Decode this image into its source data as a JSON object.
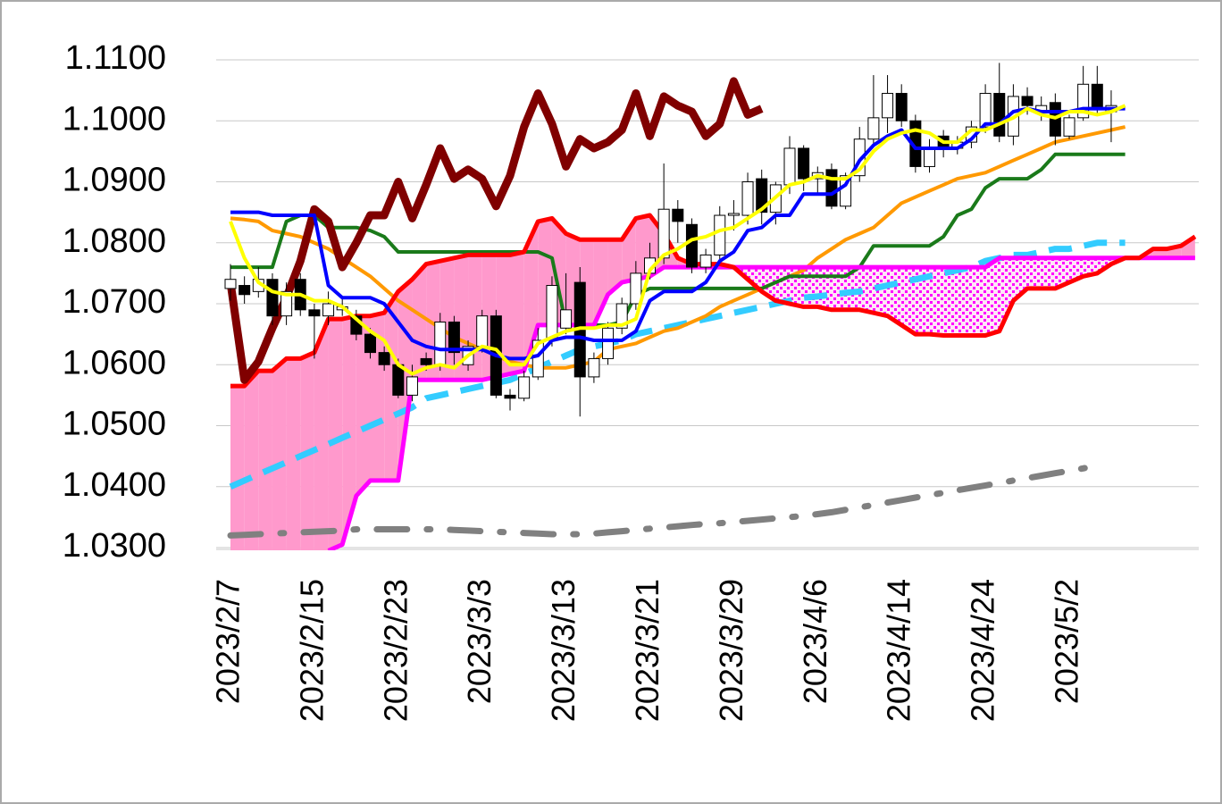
{
  "chart_data": {
    "type": "candlestick",
    "categories": [
      "2023/2/7",
      null,
      null,
      null,
      null,
      null,
      "2023/2/15",
      null,
      null,
      null,
      null,
      null,
      "2023/2/23",
      null,
      null,
      null,
      null,
      null,
      "2023/3/3",
      null,
      null,
      null,
      null,
      null,
      "2023/3/13",
      null,
      null,
      null,
      null,
      null,
      "2023/3/21",
      null,
      null,
      null,
      null,
      null,
      "2023/3/29",
      null,
      null,
      null,
      null,
      null,
      "2023/4/6",
      null,
      null,
      null,
      null,
      null,
      "2023/4/14",
      null,
      null,
      null,
      null,
      null,
      "2023/4/24",
      null,
      null,
      null,
      null,
      null,
      "2023/5/2",
      null,
      null,
      null,
      null,
      null,
      null,
      null,
      null,
      null
    ],
    "ylim": [
      1.03,
      1.11
    ],
    "yticks": [
      {
        "value": 1.03,
        "label": "1.0300"
      },
      {
        "value": 1.04,
        "label": "1.0400"
      },
      {
        "value": 1.05,
        "label": "1.0500"
      },
      {
        "value": 1.06,
        "label": "1.0600"
      },
      {
        "value": 1.07,
        "label": "1.0700"
      },
      {
        "value": 1.08,
        "label": "1.0800"
      },
      {
        "value": 1.09,
        "label": "1.0900"
      },
      {
        "value": 1.1,
        "label": "1.1000"
      },
      {
        "value": 1.11,
        "label": "1.1100"
      }
    ],
    "grid": true,
    "candles": {
      "up_color": "#ffffff",
      "down_color": "#000000",
      "open": [
        1.0725,
        1.073,
        1.072,
        1.074,
        1.068,
        1.074,
        1.069,
        1.068,
        1.069,
        1.068,
        1.065,
        1.062,
        1.06,
        1.055,
        1.061,
        1.06,
        1.067,
        1.06,
        1.063,
        1.068,
        1.055,
        1.0545,
        1.058,
        1.064,
        1.066,
        1.0735,
        1.058,
        1.061,
        1.066,
        1.07,
        1.075,
        1.0775,
        1.0855,
        1.083,
        1.076,
        1.078,
        1.0845,
        1.0845,
        1.0905,
        1.085,
        1.0895,
        1.0955,
        1.0905,
        1.092,
        1.086,
        1.091,
        1.097,
        1.1005,
        1.1045,
        1.1,
        1.0925,
        1.0975,
        1.0955,
        1.0965,
        1.099,
        1.1045,
        1.0975,
        1.104,
        1.1015,
        1.103,
        1.0975,
        1.1005,
        1.106,
        1.1015,
        null,
        null,
        null,
        null,
        null,
        null
      ],
      "high": [
        1.0765,
        1.0745,
        1.076,
        1.075,
        1.0735,
        1.075,
        1.07,
        1.072,
        1.071,
        1.069,
        1.066,
        1.063,
        1.061,
        1.06,
        1.062,
        1.0685,
        1.068,
        1.064,
        1.069,
        1.069,
        1.056,
        1.059,
        1.066,
        1.0745,
        1.075,
        1.076,
        1.062,
        1.067,
        1.071,
        1.077,
        1.08,
        1.093,
        1.087,
        1.084,
        1.079,
        1.086,
        1.087,
        1.0915,
        1.092,
        1.09,
        1.0975,
        1.096,
        1.0925,
        1.093,
        1.0915,
        1.099,
        1.1075,
        1.1075,
        1.106,
        1.101,
        1.097,
        1.0985,
        1.0975,
        1.1,
        1.106,
        1.1095,
        1.106,
        1.1055,
        1.104,
        1.1045,
        1.101,
        1.109,
        1.109,
        1.105,
        null,
        null,
        null,
        null,
        null,
        null
      ],
      "low": [
        1.0705,
        1.07,
        1.071,
        1.0665,
        1.0665,
        1.068,
        1.061,
        1.0665,
        1.068,
        1.064,
        1.061,
        1.059,
        1.0545,
        1.054,
        1.059,
        1.059,
        1.06,
        1.059,
        1.062,
        1.0545,
        1.0525,
        1.054,
        1.0575,
        1.063,
        1.065,
        1.0515,
        1.057,
        1.06,
        1.065,
        1.069,
        1.074,
        1.0765,
        1.08,
        1.075,
        1.075,
        1.077,
        1.082,
        1.083,
        1.083,
        1.083,
        1.088,
        1.0885,
        1.088,
        1.0855,
        1.0855,
        1.09,
        1.096,
        1.098,
        1.099,
        1.0915,
        1.0915,
        1.094,
        1.0945,
        1.0955,
        1.098,
        1.0965,
        1.096,
        1.101,
        1.1,
        1.096,
        1.097,
        1.1,
        1.101,
        1.0965,
        null,
        null,
        null,
        null,
        null,
        null
      ],
      "close": [
        1.074,
        1.0715,
        1.074,
        1.068,
        1.072,
        1.069,
        1.068,
        1.07,
        1.0695,
        1.065,
        1.062,
        1.06,
        1.055,
        1.058,
        1.06,
        1.067,
        1.062,
        1.063,
        1.068,
        1.055,
        1.0545,
        1.058,
        1.064,
        1.073,
        1.069,
        1.058,
        1.061,
        1.066,
        1.07,
        1.075,
        1.0775,
        1.0855,
        1.0835,
        1.076,
        1.078,
        1.0845,
        1.0848,
        1.09,
        1.085,
        1.0895,
        1.0955,
        1.0905,
        1.0915,
        1.086,
        1.091,
        1.097,
        1.1005,
        1.1045,
        1.1,
        1.0925,
        1.0955,
        1.0955,
        1.0965,
        1.099,
        1.1045,
        1.0975,
        1.104,
        1.1025,
        1.1025,
        1.0975,
        1.1005,
        1.106,
        1.102,
        1.1025,
        null,
        null,
        null,
        null,
        null,
        null
      ]
    },
    "cloud_colors": {
      "a_above": "#ff99cc",
      "b_above": "#ff00ff"
    },
    "series": [
      {
        "color": "#808080",
        "style": "dashdot",
        "values": [
          1.032,
          1.0321,
          1.0322,
          1.0323,
          1.0324,
          1.0325,
          1.0326,
          1.0327,
          1.0328,
          1.033,
          1.033,
          1.033,
          1.033,
          1.033,
          1.033,
          1.033,
          1.0329,
          1.0328,
          1.0327,
          1.0326,
          1.0325,
          1.0324,
          1.0323,
          1.0322,
          1.0322,
          1.0322,
          1.0323,
          1.0325,
          1.0327,
          1.0329,
          1.0331,
          1.0333,
          1.0335,
          1.0337,
          1.0339,
          1.034,
          1.0342,
          1.0344,
          1.0346,
          1.0348,
          1.035,
          1.0352,
          1.0355,
          1.0358,
          1.0362,
          1.0366,
          1.037,
          1.0374,
          1.0378,
          1.0382,
          1.0386,
          1.039,
          1.0394,
          1.0398,
          1.0402,
          1.0406,
          1.041,
          1.0414,
          1.0418,
          1.0422,
          1.0426,
          1.043,
          1.0435,
          null,
          null,
          null,
          null,
          null,
          null,
          null
        ]
      },
      {
        "color": "#33ccff",
        "style": "dashed",
        "values": [
          1.04,
          1.041,
          1.042,
          1.043,
          1.044,
          1.045,
          1.046,
          1.047,
          1.048,
          1.049,
          1.05,
          1.051,
          1.052,
          1.053,
          1.0545,
          1.055,
          1.0555,
          1.056,
          1.0565,
          1.057,
          1.0575,
          1.0585,
          1.0595,
          1.0605,
          1.0615,
          1.0625,
          1.063,
          1.0635,
          1.064,
          1.065,
          1.0655,
          1.066,
          1.0665,
          1.067,
          1.0675,
          1.068,
          1.0685,
          1.069,
          1.0695,
          1.07,
          1.0705,
          1.071,
          1.0712,
          1.0715,
          1.0718,
          1.072,
          1.0725,
          1.073,
          1.0735,
          1.074,
          1.0745,
          1.075,
          1.0755,
          1.076,
          1.077,
          1.0775,
          1.078,
          1.078,
          1.0785,
          1.079,
          1.079,
          1.0795,
          1.08,
          1.08,
          1.08,
          null,
          null,
          null,
          null,
          null
        ]
      },
      {
        "color": "#ff9900",
        "style": "solid",
        "values": [
          1.084,
          1.0838,
          1.0835,
          1.082,
          1.0815,
          1.081,
          1.08,
          1.079,
          1.0775,
          1.076,
          1.0745,
          1.0725,
          1.0705,
          1.069,
          1.0675,
          1.066,
          1.0645,
          1.0635,
          1.0625,
          1.0615,
          1.0605,
          1.06,
          1.0595,
          1.0595,
          1.0595,
          1.06,
          1.0605,
          1.0625,
          1.063,
          1.0635,
          1.0645,
          1.0655,
          1.066,
          1.067,
          1.068,
          1.0695,
          1.0705,
          1.0715,
          1.0725,
          1.0735,
          1.0745,
          1.0755,
          1.0775,
          1.079,
          1.0805,
          1.0815,
          1.0825,
          1.0845,
          1.0865,
          1.0875,
          1.0885,
          1.0895,
          1.0905,
          1.091,
          1.0915,
          1.0925,
          1.0935,
          1.0945,
          1.0955,
          1.0965,
          1.097,
          1.0975,
          1.098,
          1.0985,
          1.099,
          null,
          null,
          null,
          null,
          null
        ]
      },
      {
        "color": "#1a7a1a",
        "style": "solid",
        "values": [
          1.076,
          1.076,
          1.076,
          1.076,
          1.0835,
          1.0845,
          1.0845,
          1.0825,
          1.0825,
          1.0825,
          1.082,
          1.081,
          1.0785,
          1.0785,
          1.0785,
          1.0785,
          1.0785,
          1.0785,
          1.0785,
          1.0785,
          1.0785,
          1.0785,
          1.0785,
          1.0775,
          1.0665,
          1.0665,
          1.0665,
          1.0665,
          1.067,
          1.0715,
          1.0725,
          1.0725,
          1.0725,
          1.0725,
          1.0725,
          1.0725,
          1.0725,
          1.0725,
          1.0725,
          1.0735,
          1.0745,
          1.0745,
          1.0745,
          1.0745,
          1.0745,
          1.076,
          1.0795,
          1.0795,
          1.0795,
          1.0795,
          1.0795,
          1.081,
          1.0845,
          1.0855,
          1.089,
          1.0905,
          1.0905,
          1.0905,
          1.092,
          1.0945,
          1.0945,
          1.0945,
          1.0945,
          1.0945,
          1.0945,
          null,
          null,
          null,
          null,
          null
        ]
      },
      {
        "color": "#ff00ff",
        "style": "medium",
        "span": "b",
        "values": [
          null,
          null,
          null,
          null,
          null,
          null,
          null,
          1.0295,
          1.0305,
          1.0385,
          1.041,
          1.041,
          1.041,
          1.0575,
          1.0575,
          1.0575,
          1.0575,
          1.0575,
          1.0575,
          1.058,
          1.0585,
          1.059,
          1.0665,
          1.0665,
          1.0665,
          1.0665,
          1.0665,
          1.0715,
          1.0735,
          1.074,
          1.0745,
          1.076,
          1.076,
          1.076,
          1.076,
          1.076,
          1.076,
          1.076,
          1.076,
          1.076,
          1.076,
          1.076,
          1.076,
          1.076,
          1.076,
          1.076,
          1.076,
          1.076,
          1.076,
          1.076,
          1.076,
          1.076,
          1.076,
          1.076,
          1.076,
          1.0775,
          1.0775,
          1.0775,
          1.0775,
          1.0775,
          1.0775,
          1.0775,
          1.0775,
          1.0775,
          1.0775,
          1.0775,
          1.0775,
          1.0775,
          1.0775,
          1.0775
        ]
      },
      {
        "color": "#ff0000",
        "style": "medium",
        "span": "a",
        "values": [
          1.0565,
          1.0565,
          1.059,
          1.059,
          1.061,
          1.061,
          1.062,
          1.0675,
          1.0675,
          1.068,
          1.068,
          1.0685,
          1.072,
          1.074,
          1.0765,
          1.077,
          1.0775,
          1.078,
          1.078,
          1.078,
          1.078,
          1.0785,
          1.0835,
          1.084,
          1.0815,
          1.0805,
          1.0805,
          1.0805,
          1.0805,
          1.084,
          1.0845,
          1.0815,
          1.0775,
          1.0765,
          1.0765,
          1.0765,
          1.076,
          1.074,
          1.072,
          1.0705,
          1.07,
          1.0695,
          1.0695,
          1.069,
          1.069,
          1.069,
          1.0685,
          1.068,
          1.0665,
          1.065,
          1.065,
          1.0648,
          1.0648,
          1.0648,
          1.0648,
          1.0655,
          1.0705,
          1.0725,
          1.0725,
          1.0725,
          1.0735,
          1.0745,
          1.075,
          1.0765,
          1.0775,
          1.0775,
          1.079,
          1.079,
          1.0795,
          1.081
        ]
      },
      {
        "color": "#0000ff",
        "style": "solid",
        "values": [
          1.085,
          1.085,
          1.085,
          1.0845,
          1.0845,
          1.0845,
          1.0845,
          1.073,
          1.071,
          1.071,
          1.071,
          1.07,
          1.067,
          1.064,
          1.063,
          1.0625,
          1.0625,
          1.0625,
          1.0625,
          1.0615,
          1.061,
          1.061,
          1.0615,
          1.064,
          1.0645,
          1.0645,
          1.064,
          1.064,
          1.064,
          1.0655,
          1.0705,
          1.072,
          1.072,
          1.072,
          1.0735,
          1.077,
          1.0785,
          1.082,
          1.0825,
          1.0845,
          1.0845,
          1.088,
          1.088,
          1.088,
          1.0895,
          1.0935,
          1.096,
          1.0975,
          1.0985,
          1.0955,
          1.0955,
          1.0955,
          1.0955,
          1.097,
          1.0995,
          1.0995,
          1.1015,
          1.102,
          1.1015,
          1.1015,
          1.1015,
          1.102,
          1.102,
          1.102,
          1.102,
          null,
          null,
          null,
          null,
          null
        ]
      },
      {
        "color": "#ffff00",
        "style": "solid",
        "values": [
          1.0835,
          1.0775,
          1.0735,
          1.072,
          1.0715,
          1.0715,
          1.0705,
          1.0705,
          1.0695,
          1.0675,
          1.0655,
          1.064,
          1.06,
          1.0585,
          1.0595,
          1.06,
          1.0595,
          1.0615,
          1.063,
          1.0625,
          1.06,
          1.06,
          1.0635,
          1.0645,
          1.0655,
          1.066,
          1.066,
          1.0665,
          1.0665,
          1.0675,
          1.0755,
          1.078,
          1.079,
          1.0805,
          1.081,
          1.082,
          1.0825,
          1.084,
          1.0855,
          1.0875,
          1.0895,
          1.09,
          1.091,
          1.0905,
          1.0905,
          1.092,
          1.095,
          1.097,
          1.098,
          1.0985,
          1.098,
          1.0965,
          1.0965,
          1.0985,
          1.0985,
          1.0995,
          1.1005,
          1.102,
          1.101,
          1.1005,
          1.1015,
          1.1015,
          1.101,
          1.1015,
          1.1025,
          null,
          null,
          null,
          null,
          null
        ]
      },
      {
        "color": "#800000",
        "style": "thick",
        "values": [
          1.0735,
          1.0575,
          1.0605,
          1.066,
          1.071,
          1.077,
          1.0855,
          1.0835,
          1.076,
          1.08,
          1.0845,
          1.0845,
          1.09,
          1.084,
          1.0895,
          1.0955,
          1.0905,
          1.092,
          1.0905,
          1.086,
          1.091,
          1.099,
          1.1045,
          1.0995,
          1.0925,
          1.097,
          1.0955,
          1.0965,
          1.0985,
          1.1045,
          1.0975,
          1.104,
          1.1025,
          1.1015,
          1.0975,
          1.0995,
          1.1065,
          1.101,
          1.102,
          null,
          null,
          null,
          null,
          null,
          null,
          null,
          null,
          null,
          null,
          null,
          null,
          null,
          null,
          null,
          null,
          null,
          null,
          null,
          null,
          null,
          null,
          null,
          null,
          null,
          null,
          null,
          null,
          null,
          null,
          null
        ]
      }
    ]
  }
}
